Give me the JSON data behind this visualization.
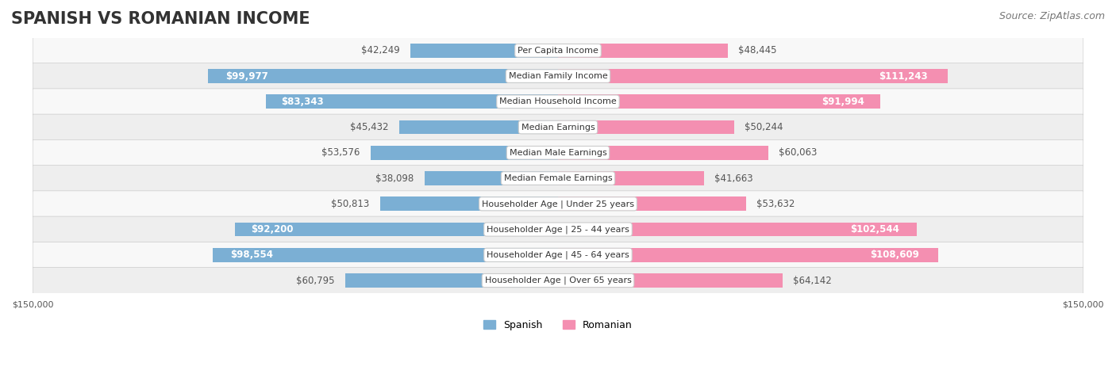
{
  "title": "SPANISH VS ROMANIAN INCOME",
  "source": "Source: ZipAtlas.com",
  "categories": [
    "Per Capita Income",
    "Median Family Income",
    "Median Household Income",
    "Median Earnings",
    "Median Male Earnings",
    "Median Female Earnings",
    "Householder Age | Under 25 years",
    "Householder Age | 25 - 44 years",
    "Householder Age | 45 - 64 years",
    "Householder Age | Over 65 years"
  ],
  "spanish_values": [
    42249,
    99977,
    83343,
    45432,
    53576,
    38098,
    50813,
    92200,
    98554,
    60795
  ],
  "romanian_values": [
    48445,
    111243,
    91994,
    50244,
    60063,
    41663,
    53632,
    102544,
    108609,
    64142
  ],
  "max_value": 150000,
  "spanish_color": "#7bafd4",
  "romanian_color": "#f48fb1",
  "spanish_label": "Spanish",
  "romanian_label": "Romanian",
  "spanish_label_color_dark": "#5a8ab0",
  "romanian_label_color_dark": "#e06090",
  "bar_bg_color": "#f0f0f0",
  "row_bg_light": "#f8f8f8",
  "row_bg_dark": "#eeeeee",
  "label_box_color": "#ffffff",
  "label_box_border": "#dddddd",
  "title_fontsize": 15,
  "source_fontsize": 9,
  "value_fontsize": 8.5,
  "category_fontsize": 8,
  "axis_fontsize": 8,
  "legend_fontsize": 9,
  "bar_height": 0.55
}
